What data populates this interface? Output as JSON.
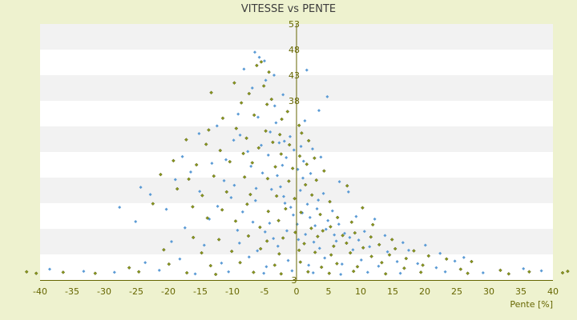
{
  "chart_data": {
    "type": "scatter",
    "title": "VITESSE vs PENTE",
    "xlabel": "Pente [%]",
    "ylabel": "",
    "xlim": [
      -40,
      40
    ],
    "ylim": [
      3,
      53
    ],
    "x_ticks": [
      -40,
      -35,
      -30,
      -25,
      -20,
      -15,
      -10,
      -5,
      0,
      5,
      10,
      15,
      20,
      25,
      30,
      35,
      40
    ],
    "y_ticks": [
      3,
      8,
      13,
      18,
      23,
      28,
      33,
      38,
      43,
      48,
      53
    ],
    "y_tick_labels": [
      "3",
      "",
      "",
      "",
      "",
      "",
      "",
      "38",
      "43",
      "48",
      "53"
    ],
    "grid": "horizontal bands",
    "legend": "none",
    "colors": {
      "background": "#eef2cf",
      "band_light": "#ffffff",
      "band_dark": "#f2f2f2",
      "text": "#666600",
      "axis": "#666600"
    },
    "series": [
      {
        "color": "#5b9bd5",
        "marker": "diamond",
        "points": [
          [
            -6.5,
            47.5
          ],
          [
            -5.8,
            46.5
          ],
          [
            -5,
            45.8
          ],
          [
            -8.2,
            44.2
          ],
          [
            -3.5,
            43
          ],
          [
            1.6,
            44
          ],
          [
            -4.8,
            42
          ],
          [
            -6.9,
            40.5
          ],
          [
            -2.1,
            39.2
          ],
          [
            -3.4,
            37
          ],
          [
            4.8,
            38.8
          ],
          [
            3.5,
            36.1
          ],
          [
            -9.1,
            35.4
          ],
          [
            -6,
            34.8
          ],
          [
            -3.2,
            33.7
          ],
          [
            1.3,
            34.1
          ],
          [
            -12.4,
            33.1
          ],
          [
            -15.2,
            31.6
          ],
          [
            -8.8,
            31.3
          ],
          [
            -1,
            31
          ],
          [
            -2.7,
            29.8
          ],
          [
            -5.5,
            29.3
          ],
          [
            0.7,
            29.1
          ],
          [
            2.5,
            28.6
          ],
          [
            -17.8,
            27.1
          ],
          [
            -11,
            26.5
          ],
          [
            -13.2,
            25.8
          ],
          [
            -4.4,
            27.4
          ],
          [
            -1.6,
            26.9
          ],
          [
            3.8,
            27
          ],
          [
            -7.1,
            25.2
          ],
          [
            0.2,
            24.6
          ],
          [
            -16.5,
            24.1
          ],
          [
            -18.9,
            22.6
          ],
          [
            -3,
            23.4
          ],
          [
            1,
            22.9
          ],
          [
            2.2,
            23.8
          ],
          [
            6.7,
            22.2
          ],
          [
            -22.8,
            19.7
          ],
          [
            -24.3,
            21.1
          ],
          [
            -15.1,
            20.3
          ],
          [
            -9.7,
            21.5
          ],
          [
            -2.5,
            21.2
          ],
          [
            0.6,
            20.5
          ],
          [
            4.2,
            19.9
          ],
          [
            8.1,
            20.2
          ],
          [
            -27.6,
            17.2
          ],
          [
            -20.3,
            16.8
          ],
          [
            -12.3,
            17.4
          ],
          [
            -6.4,
            18.5
          ],
          [
            -1.8,
            18
          ],
          [
            1.7,
            17.8
          ],
          [
            3.2,
            16.9
          ],
          [
            5.6,
            16.5
          ],
          [
            9.3,
            15.4
          ],
          [
            12.2,
            14.9
          ],
          [
            -25.1,
            14.4
          ],
          [
            -17.4,
            13.2
          ],
          [
            -13.6,
            14.9
          ],
          [
            -9.2,
            12.7
          ],
          [
            -4.2,
            14.1
          ],
          [
            -0.5,
            15.7
          ],
          [
            2.9,
            13.6
          ],
          [
            4.9,
            14.6
          ],
          [
            7.5,
            12.1
          ],
          [
            10.6,
            12.5
          ],
          [
            13.8,
            11.7
          ],
          [
            16.6,
            10.3
          ],
          [
            20.1,
            9.8
          ],
          [
            -19.5,
            10.5
          ],
          [
            -14.4,
            9.8
          ],
          [
            -8.9,
            10.2
          ],
          [
            -6.1,
            8.7
          ],
          [
            -2.9,
            9.6
          ],
          [
            0.3,
            10.9
          ],
          [
            3.6,
            9.2
          ],
          [
            6.2,
            10.6
          ],
          [
            8.8,
            8.9
          ],
          [
            11.4,
            9.5
          ],
          [
            14.2,
            8.5
          ],
          [
            17.5,
            8.8
          ],
          [
            22.4,
            8.2
          ],
          [
            26.1,
            7.4
          ],
          [
            -23.6,
            6.4
          ],
          [
            -18.2,
            7.1
          ],
          [
            -11.7,
            6.3
          ],
          [
            -7.4,
            7.5
          ],
          [
            -4.7,
            5.6
          ],
          [
            -1.3,
            6.8
          ],
          [
            1.9,
            5.9
          ],
          [
            4.4,
            7.3
          ],
          [
            7.1,
            6.1
          ],
          [
            10.1,
            6.9
          ],
          [
            12.8,
            5.7
          ],
          [
            15.7,
            6.6
          ],
          [
            18.9,
            6.2
          ],
          [
            21.8,
            5.4
          ],
          [
            24.7,
            6.7
          ],
          [
            -38.5,
            5.1
          ],
          [
            -33.2,
            4.7
          ],
          [
            -28.4,
            4.5
          ],
          [
            -21.4,
            4.9
          ],
          [
            -15.8,
            4.2
          ],
          [
            -10.6,
            4.6
          ],
          [
            -5.1,
            4.3
          ],
          [
            -0.7,
            4.8
          ],
          [
            2.6,
            4.4
          ],
          [
            6.9,
            4.1
          ],
          [
            11.1,
            4.5
          ],
          [
            16.2,
            4.3
          ],
          [
            23.2,
            4.6
          ],
          [
            29.1,
            4.4
          ],
          [
            35.4,
            5.2
          ],
          [
            38.2,
            4.8
          ],
          [
            -9.8,
            30.3
          ],
          [
            -7.6,
            28.1
          ],
          [
            -5.3,
            23.9
          ],
          [
            -3.9,
            20.7
          ],
          [
            -2,
            19.3
          ],
          [
            -0.9,
            17.2
          ],
          [
            0.9,
            16.1
          ],
          [
            2.1,
            15.2
          ],
          [
            3.4,
            18.6
          ],
          [
            4.6,
            12.9
          ],
          [
            5.9,
            11.8
          ],
          [
            6.6,
            13.9
          ],
          [
            8.3,
            11.3
          ],
          [
            9.7,
            10.8
          ],
          [
            -8.4,
            16.3
          ],
          [
            -6.8,
            14.3
          ],
          [
            -4.9,
            12.4
          ],
          [
            -3.6,
            11.1
          ],
          [
            -1.5,
            12.6
          ],
          [
            0.1,
            13.9
          ],
          [
            1.4,
            11.9
          ],
          [
            2.7,
            10.4
          ],
          [
            -11.3,
            22.4
          ],
          [
            -10.2,
            19.1
          ],
          [
            -6.3,
            20.9
          ],
          [
            -2.2,
            25.4
          ],
          [
            1.1,
            26.2
          ],
          [
            -0.4,
            28.4
          ],
          [
            -1.9,
            30.1
          ],
          [
            -4.1,
            31.9
          ]
        ]
      },
      {
        "color": "#8a9a1c",
        "marker": "diamond",
        "points": [
          [
            -5.5,
            45.6
          ],
          [
            -6.2,
            44.9
          ],
          [
            -4.3,
            43.6
          ],
          [
            -9.7,
            41.5
          ],
          [
            -5.1,
            40.9
          ],
          [
            -7.4,
            39.4
          ],
          [
            -13.3,
            39.6
          ],
          [
            -3.9,
            38.3
          ],
          [
            -4.6,
            37.3
          ],
          [
            -8.6,
            37.6
          ],
          [
            -1.4,
            35.9
          ],
          [
            -11.5,
            34.6
          ],
          [
            -6.6,
            35.2
          ],
          [
            -2.3,
            34.4
          ],
          [
            0.4,
            33.2
          ],
          [
            -13.7,
            32.3
          ],
          [
            -9.4,
            32.6
          ],
          [
            -4.8,
            32.1
          ],
          [
            -2.6,
            31.4
          ],
          [
            0.8,
            31.7
          ],
          [
            -17.2,
            30.4
          ],
          [
            -14.1,
            29.5
          ],
          [
            -7.8,
            30.7
          ],
          [
            -3.7,
            29.9
          ],
          [
            -1.1,
            29.4
          ],
          [
            1.9,
            30.2
          ],
          [
            -11.9,
            28.3
          ],
          [
            -8.3,
            27.7
          ],
          [
            -5.9,
            28.8
          ],
          [
            -2.4,
            27.6
          ],
          [
            0.5,
            27.2
          ],
          [
            2.8,
            26.8
          ],
          [
            -19.2,
            26.3
          ],
          [
            -15.6,
            25.5
          ],
          [
            -10.4,
            26.1
          ],
          [
            -6.9,
            25.9
          ],
          [
            -3.3,
            25.1
          ],
          [
            -0.6,
            24.8
          ],
          [
            1.6,
            25.6
          ],
          [
            4.3,
            24.3
          ],
          [
            -21.2,
            23.6
          ],
          [
            -16.8,
            22.7
          ],
          [
            -12.9,
            23.3
          ],
          [
            -8.1,
            23.1
          ],
          [
            -4.5,
            22.8
          ],
          [
            -1.2,
            22.3
          ],
          [
            1.4,
            21.6
          ],
          [
            3.1,
            22.5
          ],
          [
            7.9,
            21.4
          ],
          [
            -18.6,
            20.8
          ],
          [
            -14.7,
            19.5
          ],
          [
            -10.9,
            20.2
          ],
          [
            -7.2,
            19.7
          ],
          [
            -3.1,
            19.4
          ],
          [
            -0.3,
            18.9
          ],
          [
            2.4,
            19.6
          ],
          [
            5.2,
            18.3
          ],
          [
            10.3,
            17.1
          ],
          [
            -22.4,
            17.9
          ],
          [
            -16.2,
            17.3
          ],
          [
            -11.6,
            16.7
          ],
          [
            -7.7,
            17.8
          ],
          [
            -4.4,
            16.4
          ],
          [
            -1.7,
            16.9
          ],
          [
            0.7,
            16.2
          ],
          [
            3.7,
            15.8
          ],
          [
            6.4,
            15.2
          ],
          [
            8.6,
            14.3
          ],
          [
            11.9,
            13.8
          ],
          [
            -13.9,
            15.1
          ],
          [
            -9.5,
            14.5
          ],
          [
            -5.7,
            13.3
          ],
          [
            -2.8,
            14.6
          ],
          [
            -0.2,
            12.3
          ],
          [
            2.3,
            13.1
          ],
          [
            4.1,
            12.6
          ],
          [
            5.3,
            13.4
          ],
          [
            7.2,
            11.7
          ],
          [
            9.1,
            12.2
          ],
          [
            11.6,
            11.4
          ],
          [
            14.9,
            10.9
          ],
          [
            -16.1,
            11.3
          ],
          [
            -12.1,
            10.9
          ],
          [
            -7.5,
            11.6
          ],
          [
            -4.6,
            10.6
          ],
          [
            -2.1,
            11.2
          ],
          [
            1.2,
            10.1
          ],
          [
            3.3,
            11.5
          ],
          [
            5.8,
            9.6
          ],
          [
            7.8,
            10.2
          ],
          [
            10.4,
            9.3
          ],
          [
            12.9,
            9.9
          ],
          [
            15.4,
            9.1
          ],
          [
            18.3,
            8.7
          ],
          [
            -20.7,
            8.9
          ],
          [
            -14.8,
            8.3
          ],
          [
            -10.1,
            8.6
          ],
          [
            -5.6,
            9.1
          ],
          [
            -2.7,
            8.1
          ],
          [
            0.4,
            8.8
          ],
          [
            2.9,
            8.4
          ],
          [
            5.4,
            7.9
          ],
          [
            8.4,
            8.3
          ],
          [
            11.7,
            7.6
          ],
          [
            14.5,
            7.9
          ],
          [
            17.1,
            7.2
          ],
          [
            20.6,
            7.7
          ],
          [
            23.4,
            7.1
          ],
          [
            27.3,
            6.6
          ],
          [
            -26.1,
            5.4
          ],
          [
            -19.9,
            6.1
          ],
          [
            -13.4,
            5.8
          ],
          [
            -8.8,
            6.4
          ],
          [
            -3.4,
            5.9
          ],
          [
            0.6,
            6.5
          ],
          [
            3.9,
            5.5
          ],
          [
            6.3,
            6.2
          ],
          [
            9.5,
            5.6
          ],
          [
            13.3,
            6.4
          ],
          [
            16.8,
            5.3
          ],
          [
            19.7,
            5.9
          ],
          [
            25.6,
            5.1
          ],
          [
            31.8,
            4.9
          ],
          [
            36.3,
            4.6
          ],
          [
            -31.4,
            4.3
          ],
          [
            -24.6,
            4.6
          ],
          [
            -17.1,
            4.4
          ],
          [
            -12.6,
            4.1
          ],
          [
            -6.7,
            4.5
          ],
          [
            -2.4,
            4.2
          ],
          [
            1.8,
            4.6
          ],
          [
            5.1,
            4.3
          ],
          [
            8.9,
            4.7
          ],
          [
            13.9,
            4.2
          ],
          [
            19.4,
            4.5
          ],
          [
            26.7,
            4.3
          ],
          [
            33.1,
            4.2
          ],
          [
            -36.4,
            4.5
          ],
          [
            -40.6,
            4.3
          ],
          [
            -42.1,
            4.6
          ],
          [
            41.5,
            4.4
          ],
          [
            42.3,
            4.7
          ]
        ]
      }
    ]
  }
}
